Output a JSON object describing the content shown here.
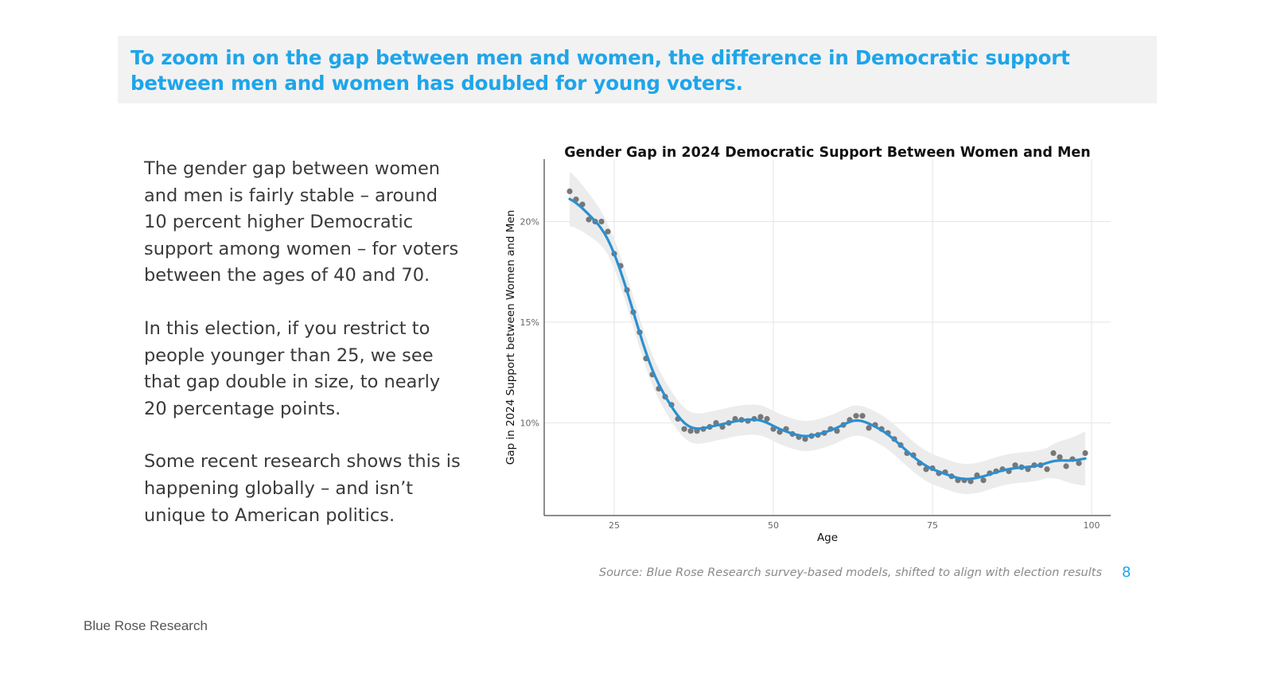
{
  "headline": "To zoom in on the gap between men and women, the difference in Democratic support between men and women has doubled for young voters.",
  "paragraphs": [
    "The gender gap between women and men is fairly stable – around 10 percent higher Democratic support among women – for voters between the ages of 40 and 70.",
    "In this election, if you restrict to people younger than 25, we see that gap double in size, to nearly 20 percentage points.",
    "Some recent research shows this is happening globally – and isn’t unique to American politics."
  ],
  "source": "Source: Blue Rose Research survey-based models, shifted to align with election results",
  "page_number": "8",
  "footer": "Blue Rose Research",
  "colors": {
    "accent": "#1ea5ea",
    "line": "#2b8fd0",
    "points": "#777777",
    "band": "#ececec"
  },
  "chart_data": {
    "type": "scatter",
    "title": "Gender Gap in 2024 Democratic Support Between Women and Men",
    "xlabel": "Age",
    "ylabel": "Gap in 2024 Support between Women and Men",
    "xlim": [
      14,
      103
    ],
    "ylim": [
      5.4,
      23.1
    ],
    "x_ticks": [
      25,
      50,
      75,
      100
    ],
    "x_tick_labels": [
      "25",
      "50",
      "75",
      "100"
    ],
    "y_ticks": [
      10,
      15,
      20
    ],
    "y_tick_labels": [
      "10%",
      "15%",
      "20%"
    ],
    "grid": true,
    "smoother": "loess fit with confidence band",
    "x": [
      18,
      19,
      20,
      21,
      22,
      23,
      24,
      25,
      26,
      27,
      28,
      29,
      30,
      31,
      32,
      33,
      34,
      35,
      36,
      37,
      38,
      39,
      40,
      41,
      42,
      43,
      44,
      45,
      46,
      47,
      48,
      49,
      50,
      51,
      52,
      53,
      54,
      55,
      56,
      57,
      58,
      59,
      60,
      61,
      62,
      63,
      64,
      65,
      66,
      67,
      68,
      69,
      70,
      71,
      72,
      73,
      74,
      75,
      76,
      77,
      78,
      79,
      80,
      81,
      82,
      83,
      84,
      85,
      86,
      87,
      88,
      89,
      90,
      91,
      92,
      93,
      94,
      95,
      96,
      97,
      98,
      99
    ],
    "y": [
      21.5,
      21.1,
      20.85,
      20.1,
      20.0,
      20.0,
      19.5,
      18.4,
      17.8,
      16.6,
      15.5,
      14.5,
      13.2,
      12.4,
      11.7,
      11.3,
      10.9,
      10.2,
      9.7,
      9.6,
      9.6,
      9.7,
      9.8,
      10.0,
      9.8,
      10.0,
      10.2,
      10.15,
      10.1,
      10.2,
      10.3,
      10.2,
      9.7,
      9.55,
      9.7,
      9.45,
      9.3,
      9.2,
      9.35,
      9.4,
      9.5,
      9.7,
      9.6,
      9.9,
      10.15,
      10.35,
      10.35,
      9.75,
      9.9,
      9.7,
      9.5,
      9.2,
      8.9,
      8.5,
      8.4,
      8.0,
      7.7,
      7.75,
      7.5,
      7.55,
      7.35,
      7.15,
      7.15,
      7.1,
      7.4,
      7.15,
      7.5,
      7.6,
      7.7,
      7.6,
      7.9,
      7.8,
      7.7,
      7.9,
      7.9,
      7.7,
      8.5,
      8.3,
      7.85,
      8.2,
      8.0,
      8.5
    ]
  }
}
